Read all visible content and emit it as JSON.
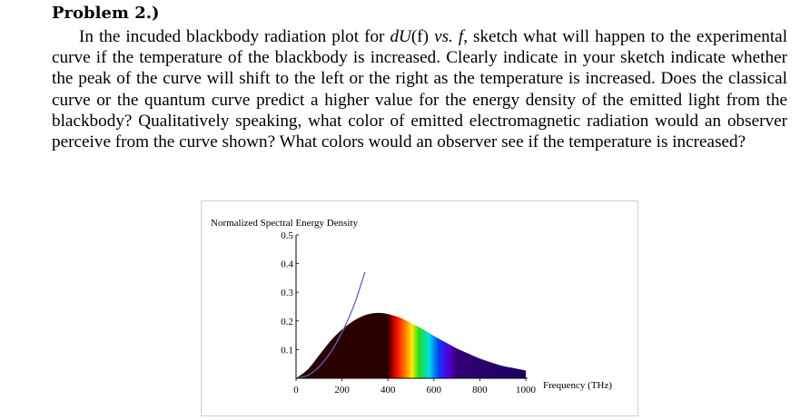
{
  "problem": {
    "heading": "Problem 2.)",
    "q_intro": "In the incuded blackbody radiation plot for ",
    "q_dU": "dU",
    "q_f_paren": "(f)",
    "q_vs": "vs.",
    "q_f": "f",
    "q_rest": ", sketch what will happen to the experimental curve if the temperature of the blackbody is increased. Clearly indicate in your sketch indicate whether the peak of the curve will shift to the left or the right as the temperature is increased. Does the classical curve or the quantum curve predict a higher value for the energy density of the emitted light from the blackbody? Qualitatively speaking, what color of emitted electromagnetic radiation would an observer perceive from the curve shown? What colors would an observer see if the temperature is increased?"
  },
  "chart_data": {
    "type": "area",
    "ylabel": "Normalized Spectral Energy Density",
    "xlabel": "Frequency (THz)",
    "xlim": [
      0,
      1000
    ],
    "ylim": [
      0,
      0.5
    ],
    "x_ticks": [
      0,
      200,
      400,
      600,
      800,
      1000
    ],
    "y_ticks": [
      0.1,
      0.2,
      0.3,
      0.4,
      0.5
    ],
    "x_tick_labels": [
      "0",
      "200",
      "400",
      "600",
      "800",
      "1000"
    ],
    "y_tick_labels": [
      "0.1",
      "0.2",
      "0.3",
      "0.4",
      "0.5"
    ],
    "grid": false,
    "series": [
      {
        "kind": "classical",
        "color": "#5b62c8",
        "x": [
          0,
          50,
          100,
          150,
          200,
          250,
          300
        ],
        "y": [
          0,
          0.01,
          0.04,
          0.09,
          0.16,
          0.25,
          0.37
        ]
      },
      {
        "kind": "quantum",
        "fill": "spectrum",
        "x": [
          0,
          50,
          100,
          150,
          200,
          250,
          300,
          350,
          400,
          450,
          500,
          550,
          600,
          650,
          700,
          750,
          800,
          850,
          900,
          950,
          1000
        ],
        "y": [
          0,
          0.03,
          0.08,
          0.13,
          0.17,
          0.2,
          0.22,
          0.228,
          0.224,
          0.212,
          0.193,
          0.172,
          0.148,
          0.126,
          0.104,
          0.086,
          0.069,
          0.055,
          0.043,
          0.035,
          0.027
        ]
      }
    ],
    "spectrum_colors": [
      {
        "x": 0,
        "color": "#2b0000"
      },
      {
        "x": 400,
        "color": "#2b0000"
      },
      {
        "x": 420,
        "color": "#aa0000"
      },
      {
        "x": 445,
        "color": "#ff1a00"
      },
      {
        "x": 475,
        "color": "#ff7a00"
      },
      {
        "x": 505,
        "color": "#ffee00"
      },
      {
        "x": 535,
        "color": "#22dd22"
      },
      {
        "x": 580,
        "color": "#00dddd"
      },
      {
        "x": 620,
        "color": "#0044ff"
      },
      {
        "x": 660,
        "color": "#5500dd"
      },
      {
        "x": 700,
        "color": "#330077"
      },
      {
        "x": 1000,
        "color": "#1a0060"
      }
    ]
  }
}
